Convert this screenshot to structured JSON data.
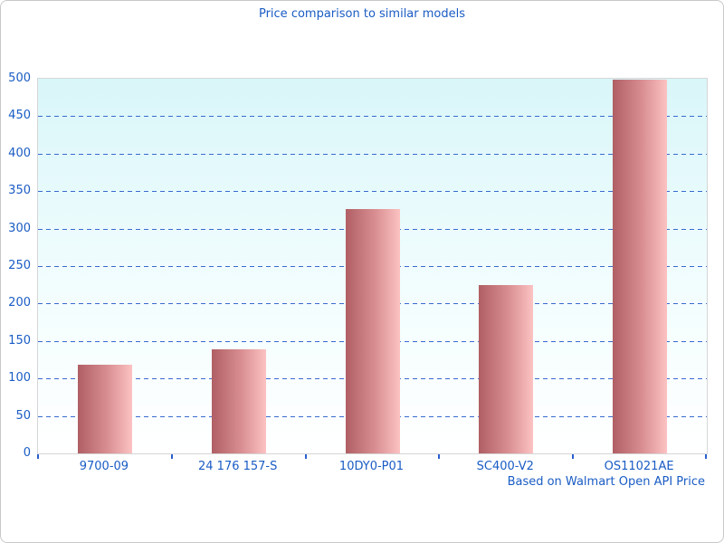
{
  "title": "Price comparison to similar models",
  "caption": "Based on Walmart Open API Price",
  "colors": {
    "text_blue": "#1a5cc4",
    "gridline_blue": "#3a6ad0",
    "tick_blue": "#2a5fd0",
    "bar_dark": "#b05f64",
    "bar_mid": "#d98f92",
    "bar_light": "#fcc2c2",
    "plot_bg_top": "#d9f6f9",
    "plot_bg_bottom": "#ffffff",
    "plot_border": "#d6d6d6",
    "frame_border": "#c9c9c9"
  },
  "chart_data": {
    "type": "bar",
    "title": "Price comparison to similar models",
    "categories": [
      "9700-09",
      "24 176 157-S",
      "10DY0-P01",
      "SC400-V2",
      "OS11021AE"
    ],
    "values": [
      118,
      139,
      326,
      225,
      499
    ],
    "xlabel": "",
    "ylabel": "",
    "ylim": [
      0,
      500
    ],
    "ytick_interval": 50,
    "grid": "horizontal-dashed",
    "legend": "none",
    "annotation": "Based on Walmart Open API Price"
  }
}
